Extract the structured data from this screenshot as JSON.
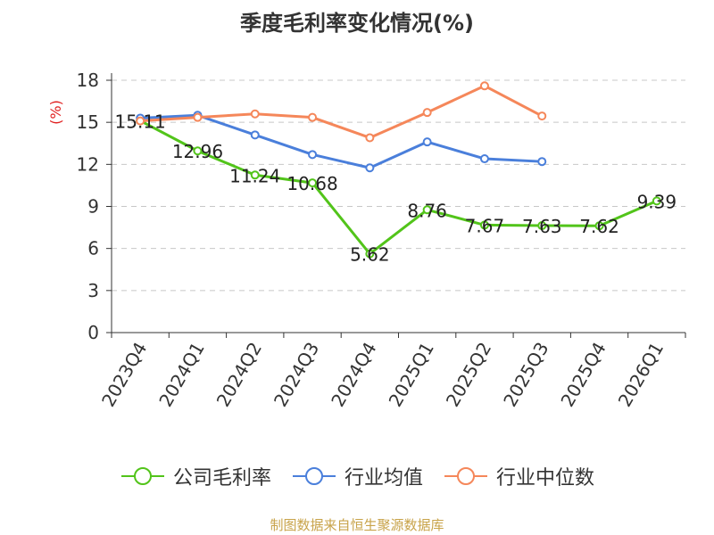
{
  "title": "季度毛利率变化情况(%)",
  "source": "制图数据来自恒生聚源数据库",
  "colors": {
    "series1": "#52c41a",
    "series2": "#4a7fdb",
    "series3": "#f5875a",
    "ylabel": "#e02020"
  },
  "chart_data": {
    "type": "line",
    "title": "季度毛利率变化情况(%)",
    "ylabel": "(%)",
    "ylim": [
      0,
      18
    ],
    "yticks": [
      0,
      3,
      6,
      9,
      12,
      15,
      18
    ],
    "grid": true,
    "legend_position": "bottom",
    "categories": [
      "2023Q4",
      "2024Q1",
      "2024Q2",
      "2024Q3",
      "2024Q4",
      "2025Q1",
      "2025Q2",
      "2025Q3",
      "2025Q4",
      "2026Q1"
    ],
    "series": [
      {
        "name": "公司毛利率",
        "values": [
          15.11,
          12.96,
          11.24,
          10.68,
          5.62,
          8.76,
          7.67,
          7.63,
          7.62,
          9.39
        ],
        "labels": [
          "15.11",
          "12.96",
          "11.24",
          "10.68",
          "5.62",
          "8.76",
          "7.67",
          "7.63",
          "7.62",
          "9.39"
        ]
      },
      {
        "name": "行业均值",
        "values": [
          15.3,
          15.5,
          14.1,
          12.7,
          11.75,
          13.6,
          12.4,
          12.2,
          null,
          null
        ]
      },
      {
        "name": "行业中位数",
        "values": [
          15.1,
          15.35,
          15.6,
          15.35,
          13.9,
          15.7,
          17.6,
          15.45,
          null,
          null
        ]
      }
    ]
  }
}
